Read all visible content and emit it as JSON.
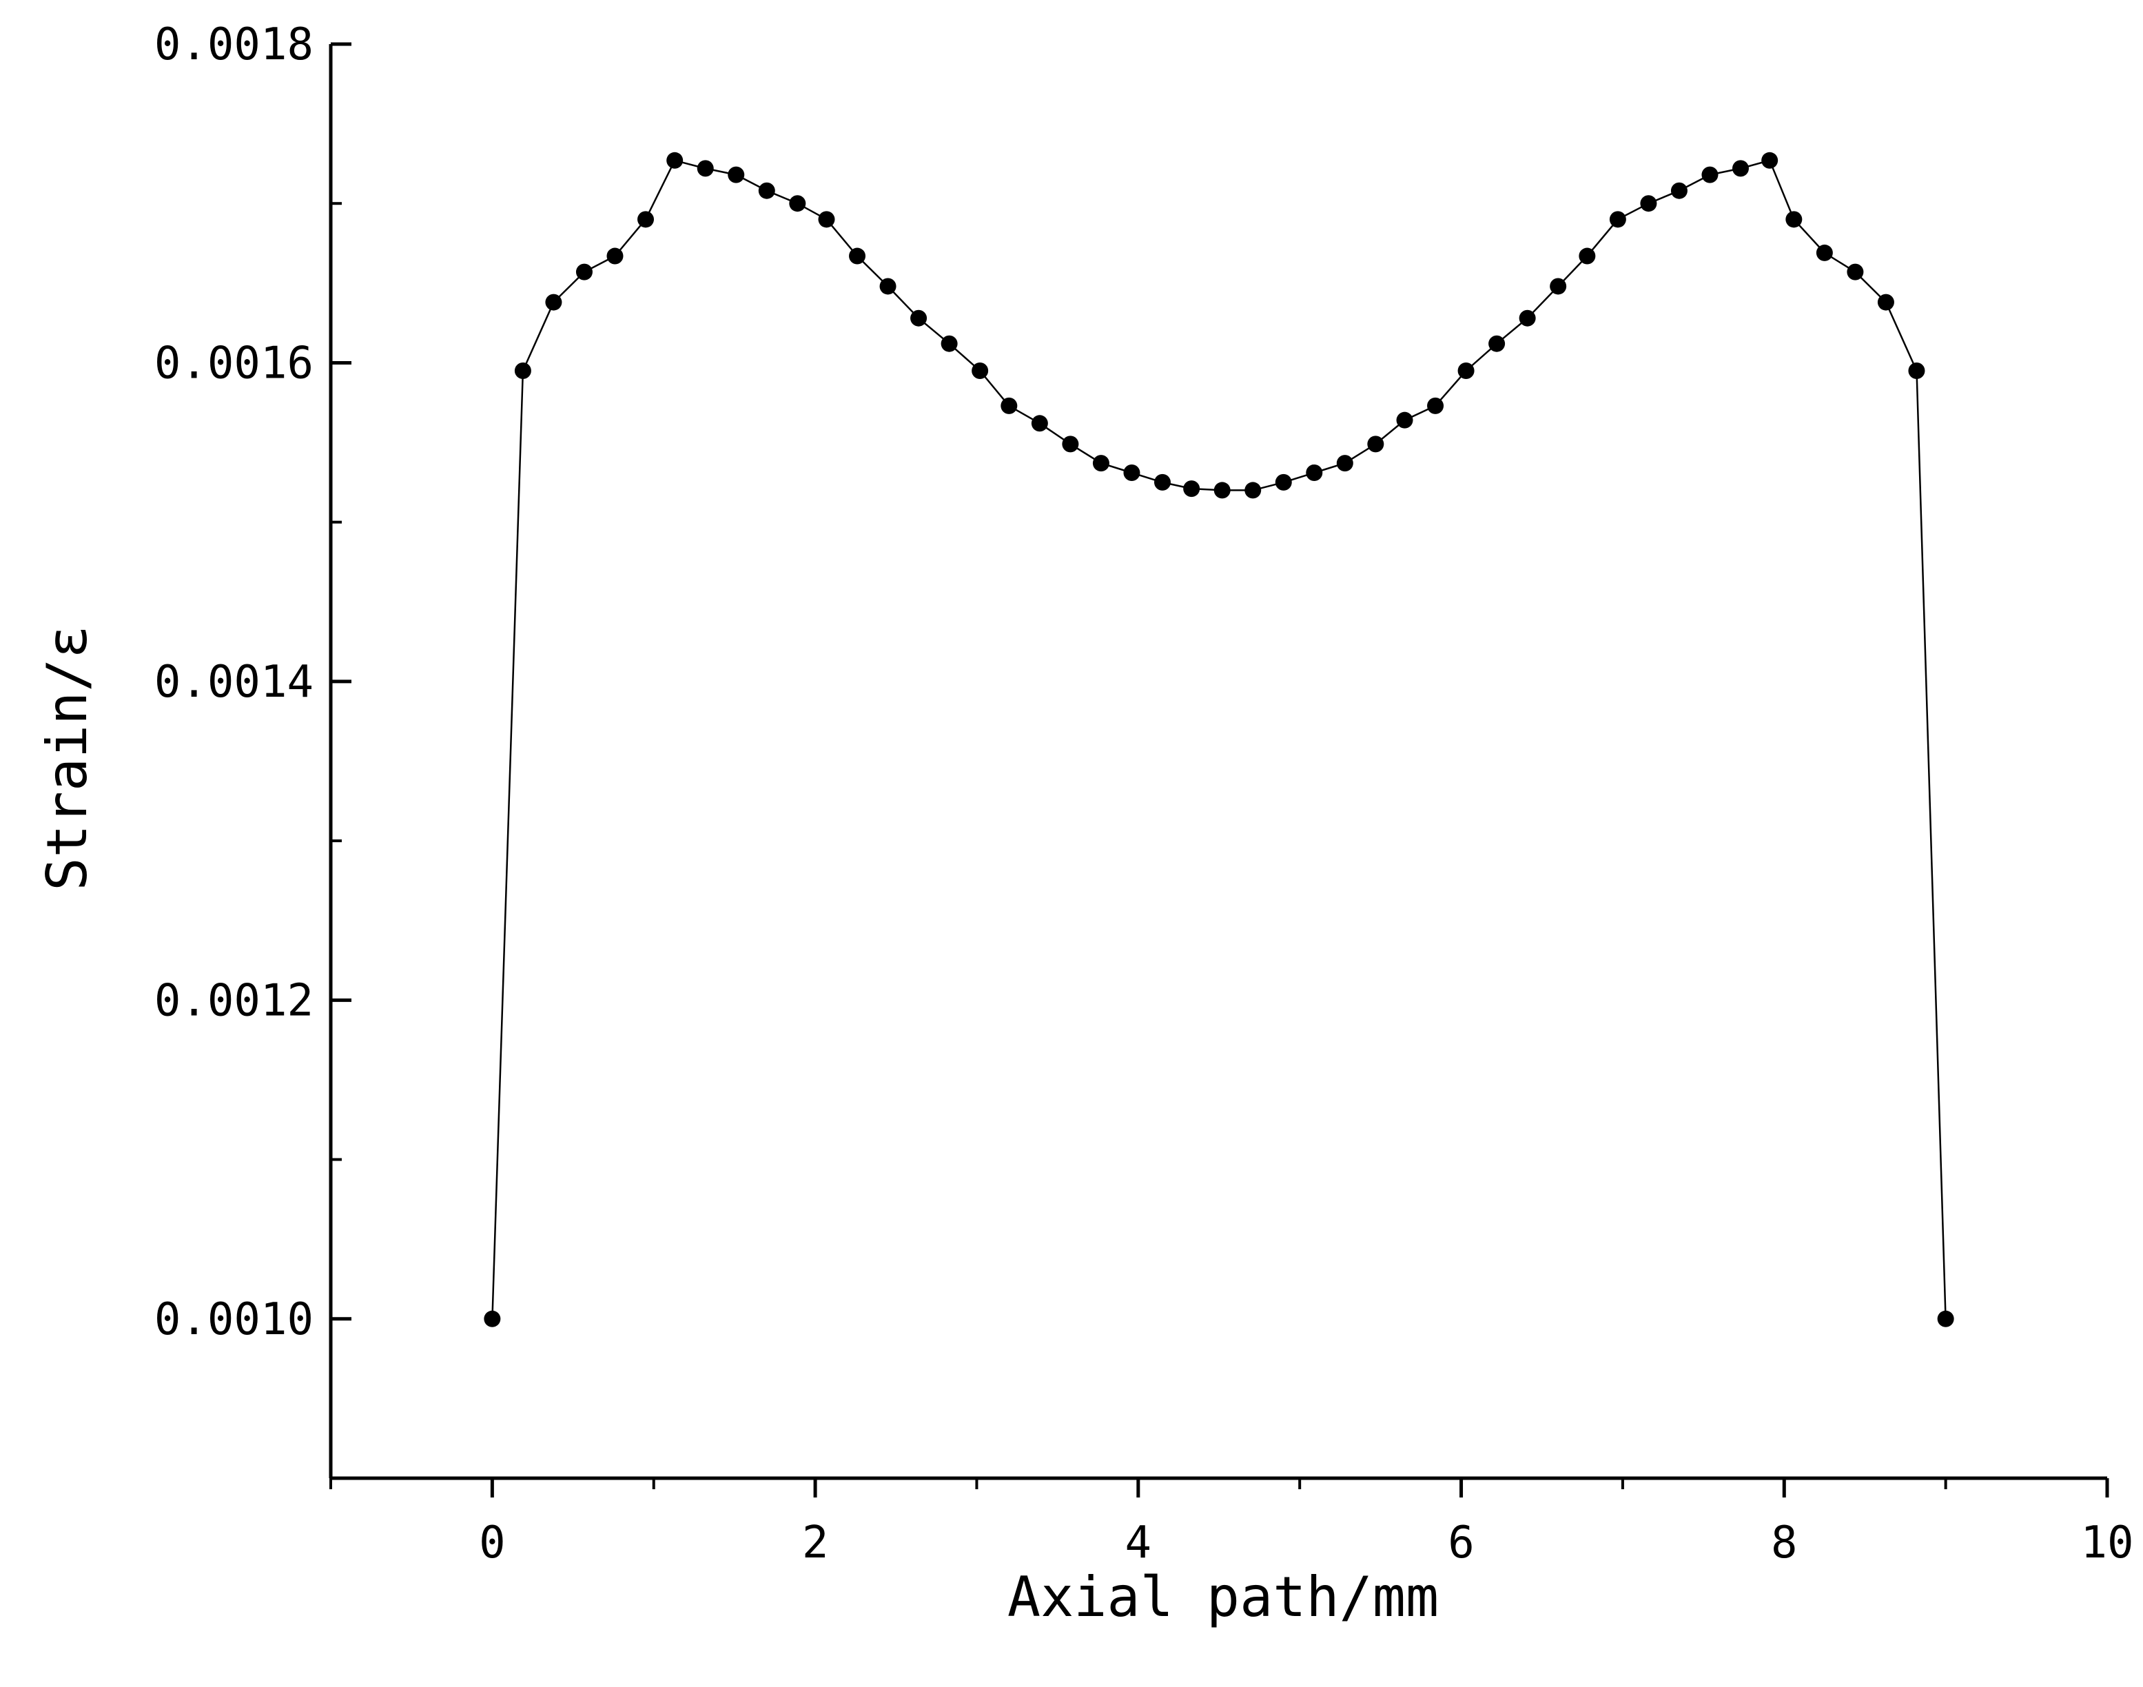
{
  "chart_data": {
    "type": "line",
    "xlabel": "Axial path/mm",
    "ylabel": "Strain/ε",
    "xlim": [
      -1,
      10
    ],
    "ylim": [
      0.0009,
      0.0018
    ],
    "x_ticks": [
      0,
      2,
      4,
      6,
      8,
      10
    ],
    "x_tick_labels": [
      "0",
      "2",
      "4",
      "6",
      "8",
      "10"
    ],
    "y_ticks": [
      0.001,
      0.0012,
      0.0014,
      0.0016,
      0.0018
    ],
    "y_tick_labels": [
      "0.0010",
      "0.0012",
      "0.0014",
      "0.0016",
      "0.0018"
    ],
    "grid": false,
    "series": [
      {
        "marker": "filled-circle",
        "color": "#000000",
        "x": [
          0,
          0.19,
          0.38,
          0.57,
          0.76,
          0.95,
          1.13,
          1.32,
          1.51,
          1.7,
          1.89,
          2.07,
          2.26,
          2.45,
          2.64,
          2.83,
          3.02,
          3.2,
          3.39,
          3.58,
          3.77,
          3.96,
          4.15,
          4.33,
          4.52,
          4.71,
          4.9,
          5.09,
          5.28,
          5.47,
          5.65,
          5.84,
          6.03,
          6.22,
          6.41,
          6.6,
          6.78,
          6.97,
          7.16,
          7.35,
          7.54,
          7.73,
          7.91,
          8.06,
          8.25,
          8.44,
          8.63,
          8.82,
          9.0
        ],
        "y": [
          0.001,
          0.001595,
          0.001638,
          0.001657,
          0.001667,
          0.00169,
          0.001727,
          0.001722,
          0.001718,
          0.001708,
          0.0017,
          0.00169,
          0.001667,
          0.001648,
          0.001628,
          0.001612,
          0.001595,
          0.001573,
          0.001562,
          0.001549,
          0.001537,
          0.001531,
          0.001525,
          0.001521,
          0.00152,
          0.00152,
          0.001525,
          0.001531,
          0.001537,
          0.001549,
          0.001564,
          0.001573,
          0.001595,
          0.001612,
          0.001628,
          0.001648,
          0.001667,
          0.00169,
          0.0017,
          0.001708,
          0.001718,
          0.001722,
          0.001727,
          0.00169,
          0.001669,
          0.001657,
          0.001638,
          0.001595,
          0.001
        ]
      }
    ]
  }
}
